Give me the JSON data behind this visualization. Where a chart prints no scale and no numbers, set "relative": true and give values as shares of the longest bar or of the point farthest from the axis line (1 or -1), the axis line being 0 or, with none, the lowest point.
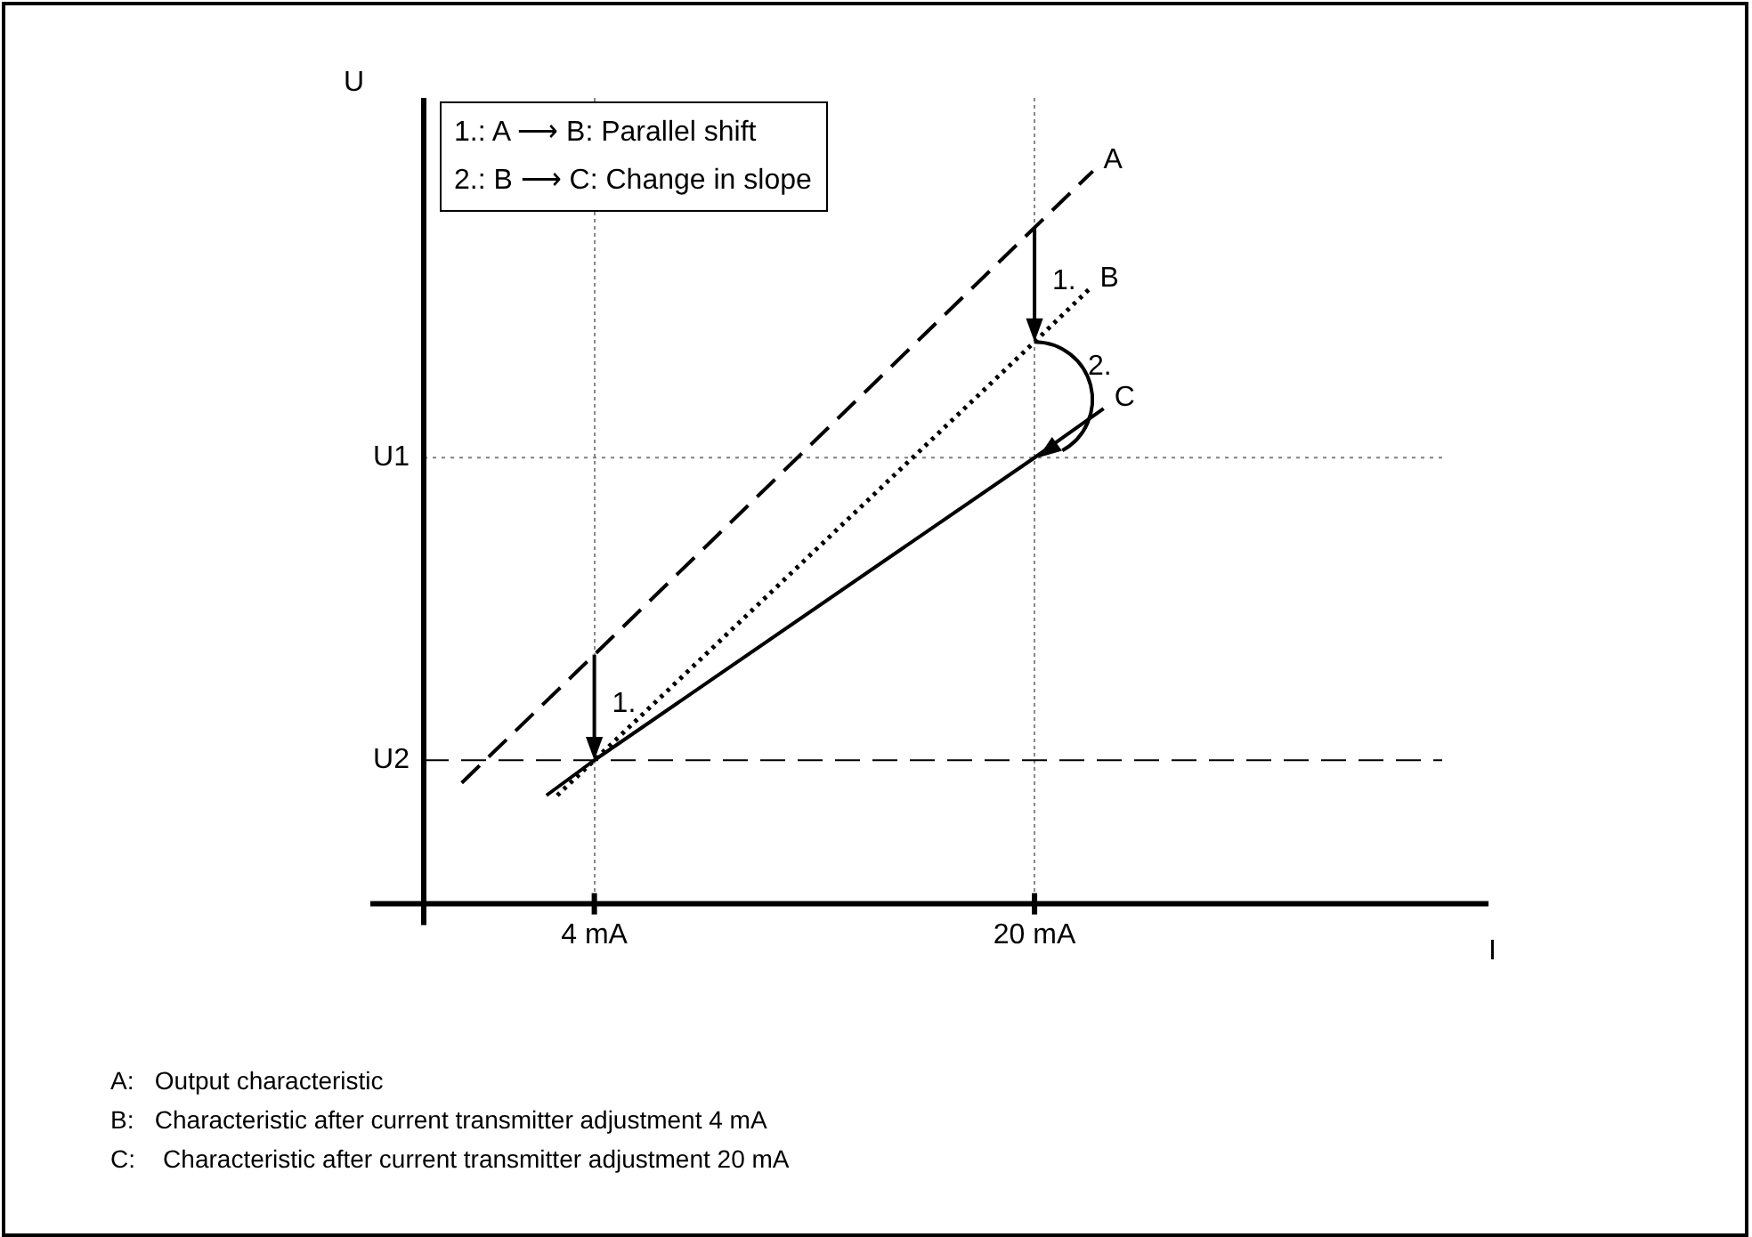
{
  "chart_data": {
    "type": "line",
    "relative": true,
    "xlabel": "I",
    "ylabel": "U",
    "xlim": [
      -2.2,
      36.5
    ],
    "xticks": [
      {
        "value": 4,
        "label": "4 mA"
      },
      {
        "value": 20,
        "label": "20 mA"
      }
    ],
    "grid": "x",
    "legend": false,
    "marker": "none",
    "series": [
      {
        "name": "A",
        "color": "#000000",
        "line_style": "dashed",
        "x": [
          -0.82,
          4,
          20,
          22.12
        ],
        "values": [
          0.165,
          0.34,
          0.923,
          1.0
        ]
      },
      {
        "name": "B",
        "color": "#000000",
        "line_style": "dotted",
        "x": [
          2.65,
          4,
          20,
          21.99
        ],
        "values": [
          0.148,
          0.196,
          0.767,
          0.839
        ]
      },
      {
        "name": "C",
        "color": "#000000",
        "line_style": "solid",
        "x": [
          2.26,
          4,
          20,
          22.51
        ],
        "values": [
          0.148,
          0.196,
          0.609,
          0.676
        ]
      }
    ],
    "ref_lines": [
      {
        "axis": "y",
        "value": 0.609,
        "label": "U1",
        "color": "#808080",
        "line_style": "dotted"
      },
      {
        "axis": "y",
        "value": 0.196,
        "label": "U2",
        "color": "#000000",
        "line_style": "dashed"
      }
    ],
    "annotations": [
      "1.",
      "1.",
      "2.",
      "1.: A ⟶ B: Parallel shift",
      "2.: B ⟶ C: Change in slope",
      "A:   Output characteristic",
      "B:   Characteristic after current transmitter adjustment 4 mA",
      "C:    Characteristic after current transmitter adjustment 20 mA"
    ]
  }
}
